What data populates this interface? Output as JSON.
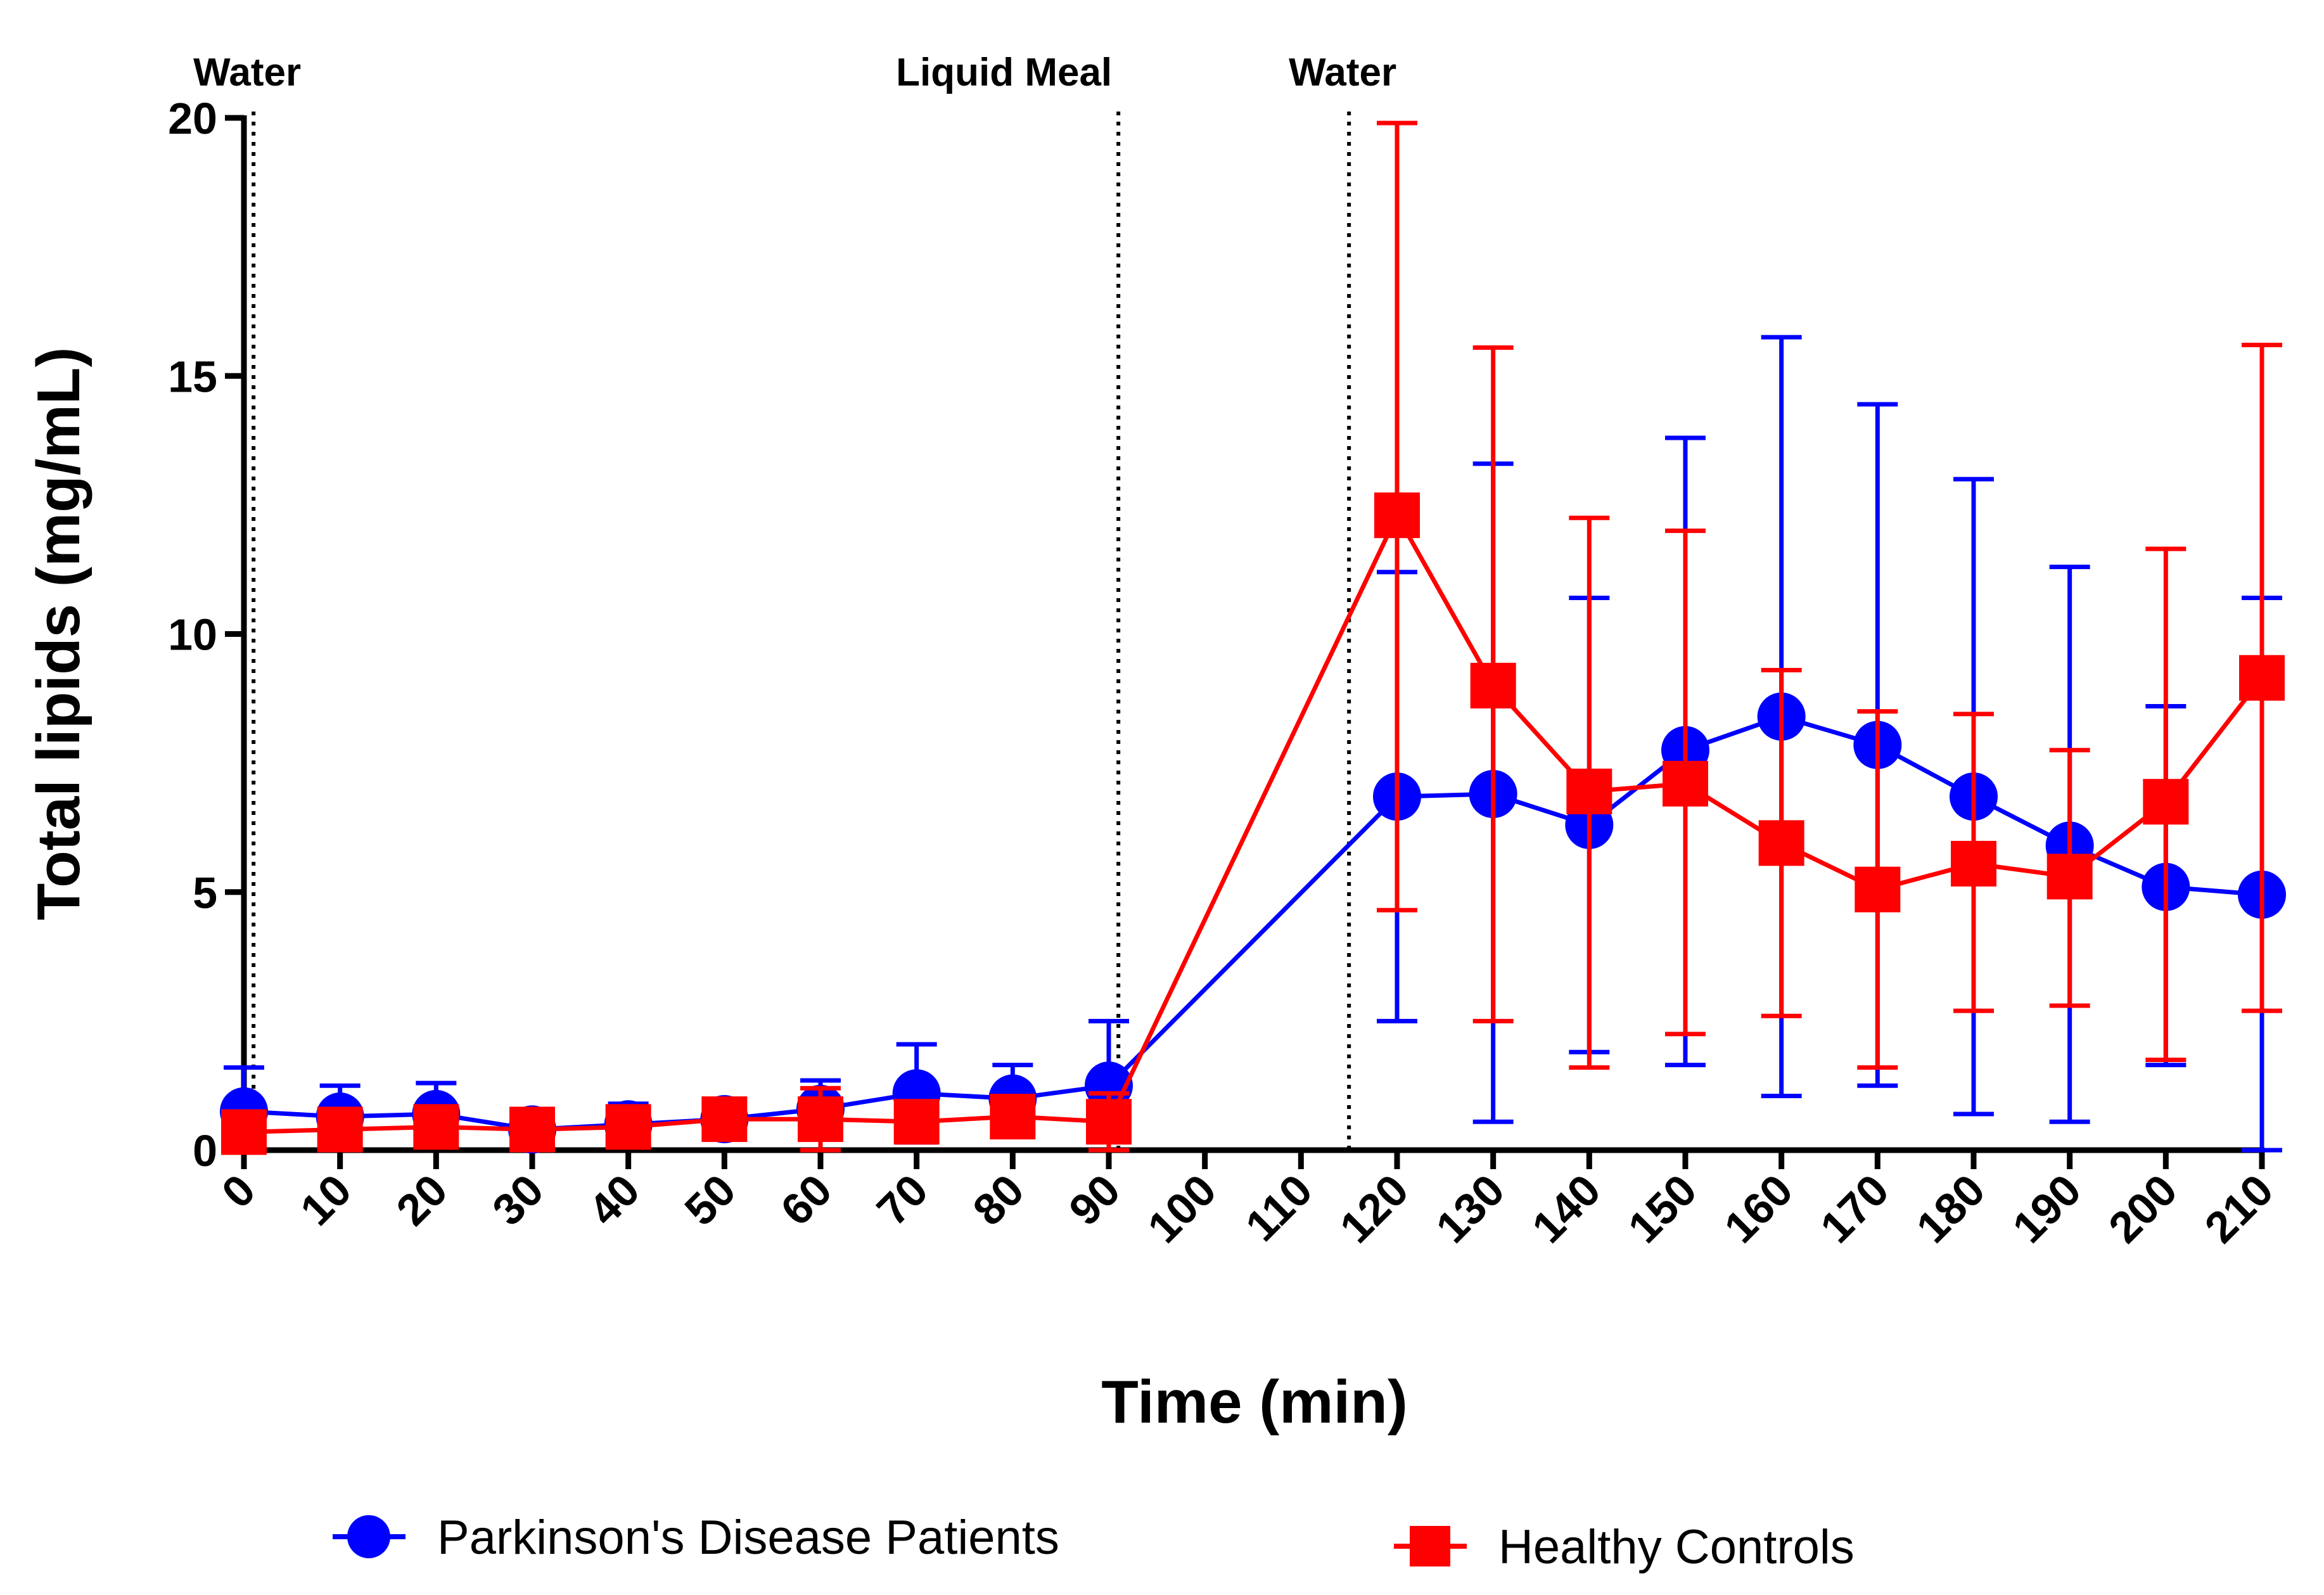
{
  "chart_data": {
    "type": "line",
    "title": "",
    "xlabel": "Time (min)",
    "ylabel": "Total lipids (mg/mL)",
    "xlim": [
      0,
      210
    ],
    "ylim": [
      0,
      20
    ],
    "x_ticks": [
      0,
      10,
      20,
      30,
      40,
      50,
      60,
      70,
      80,
      90,
      100,
      110,
      120,
      130,
      140,
      150,
      160,
      170,
      180,
      190,
      200,
      210
    ],
    "y_ticks": [
      0,
      5,
      10,
      15,
      20
    ],
    "grid": false,
    "legend_position": "bottom",
    "events": [
      {
        "label": "Water",
        "x": 1
      },
      {
        "label": "Liquid Meal",
        "x": 91
      },
      {
        "label": "Water",
        "x": 115
      }
    ],
    "series": [
      {
        "name": "Parkinson's Disease Patients",
        "color": "#0000ff",
        "marker": "circle",
        "x": [
          0,
          10,
          20,
          30,
          40,
          50,
          60,
          70,
          80,
          90,
          120,
          130,
          140,
          150,
          160,
          170,
          180,
          190,
          200,
          210
        ],
        "y": [
          0.75,
          0.65,
          0.7,
          0.4,
          0.5,
          0.6,
          0.8,
          1.1,
          1.0,
          1.25,
          6.85,
          6.9,
          6.3,
          7.75,
          8.4,
          7.85,
          6.85,
          5.9,
          5.1,
          4.95
        ],
        "err_low": [
          0.0,
          0.05,
          0.1,
          0.3,
          0.1,
          0.5,
          0.25,
          0.15,
          0.35,
          0.0,
          2.5,
          0.55,
          1.9,
          1.65,
          1.05,
          1.25,
          0.7,
          0.55,
          1.65,
          0.0
        ],
        "err_high": [
          1.6,
          1.25,
          1.3,
          0.5,
          0.9,
          0.7,
          1.35,
          2.05,
          1.65,
          2.5,
          11.2,
          13.3,
          10.7,
          13.8,
          15.75,
          14.45,
          13.0,
          11.3,
          8.6,
          10.7
        ]
      },
      {
        "name": "Healthy Controls",
        "color": "#ff0000",
        "marker": "square",
        "x": [
          0,
          10,
          20,
          30,
          40,
          50,
          60,
          70,
          80,
          90,
          120,
          130,
          140,
          150,
          160,
          170,
          180,
          190,
          200,
          210
        ],
        "y": [
          0.35,
          0.4,
          0.45,
          0.4,
          0.45,
          0.6,
          0.6,
          0.55,
          0.65,
          0.55,
          12.3,
          9.0,
          6.95,
          7.1,
          5.95,
          5.05,
          5.55,
          5.3,
          6.75,
          9.15
        ],
        "err_low": [
          0.3,
          0.2,
          0.2,
          0.3,
          0.3,
          0.5,
          0.0,
          0.3,
          0.35,
          0.0,
          4.65,
          2.5,
          1.6,
          2.25,
          2.6,
          1.6,
          2.7,
          2.8,
          1.75,
          2.7
        ],
        "err_high": [
          0.4,
          0.6,
          0.7,
          0.5,
          0.6,
          0.7,
          1.2,
          0.8,
          0.95,
          1.1,
          19.9,
          15.55,
          12.25,
          12.0,
          9.3,
          8.5,
          8.45,
          7.75,
          11.65,
          15.6
        ]
      }
    ]
  }
}
